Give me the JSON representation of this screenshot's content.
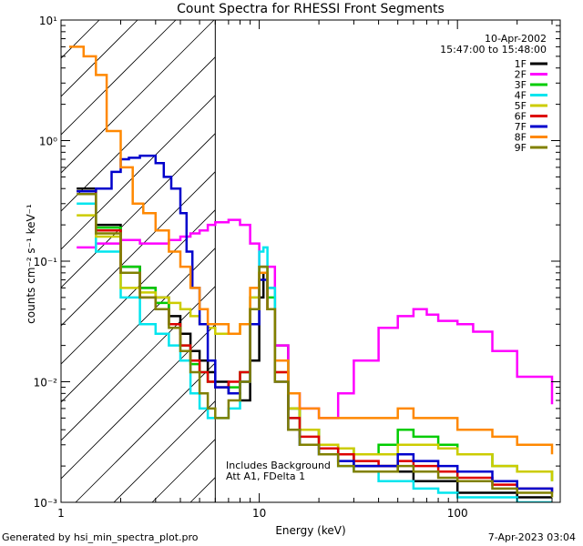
{
  "chart_data": {
    "type": "line",
    "title": "Count Spectra for RHESSI Front Segments",
    "xlabel": "Energy (keV)",
    "ylabel": "counts cm⁻² s⁻¹ keV⁻¹",
    "xscale": "log",
    "yscale": "log",
    "xlim": [
      1,
      330
    ],
    "ylim": [
      0.001,
      10
    ],
    "x_ticks": [
      {
        "value": 1,
        "label": "1"
      },
      {
        "value": 10,
        "label": "10"
      },
      {
        "value": 100,
        "label": "100"
      }
    ],
    "y_ticks": [
      {
        "value": 10,
        "label": "10¹"
      },
      {
        "value": 1,
        "label": "10⁰"
      },
      {
        "value": 0.1,
        "label": "10⁻¹"
      },
      {
        "value": 0.01,
        "label": "10⁻²"
      },
      {
        "value": 0.001,
        "label": "10⁻³"
      }
    ],
    "date": "10-Apr-2002",
    "time_range": "15:47:00 to 15:48:00",
    "annotation_lines": [
      "Includes Background",
      "Att A1, FDelta 1"
    ],
    "shaded_region_keV": [
      1,
      6
    ],
    "legend_position": "top-right",
    "series": [
      {
        "name": "1F",
        "color": "#000000",
        "x": [
          1.2,
          1.5,
          2,
          2.5,
          3,
          3.5,
          4,
          4.5,
          5,
          5.5,
          6,
          7,
          8,
          9,
          10,
          10.5,
          11,
          12,
          14,
          16,
          20,
          25,
          30,
          40,
          50,
          60,
          80,
          100,
          150,
          200,
          300
        ],
        "values": [
          0.4,
          0.2,
          0.09,
          0.06,
          0.05,
          0.035,
          0.025,
          0.018,
          0.015,
          0.012,
          0.01,
          0.008,
          0.007,
          0.015,
          0.05,
          0.08,
          0.06,
          0.02,
          0.006,
          0.004,
          0.003,
          0.0025,
          0.002,
          0.002,
          0.0018,
          0.0015,
          0.0015,
          0.0012,
          0.0012,
          0.0011,
          0.0011
        ]
      },
      {
        "name": "2F",
        "color": "#ff00ff",
        "x": [
          1.2,
          1.5,
          2,
          2.5,
          3,
          3.5,
          4,
          4.5,
          5,
          5.5,
          6,
          7,
          8,
          9,
          10,
          12,
          14,
          16,
          20,
          25,
          30,
          40,
          50,
          60,
          70,
          80,
          100,
          120,
          150,
          200,
          300
        ],
        "values": [
          0.13,
          0.14,
          0.15,
          0.14,
          0.14,
          0.15,
          0.16,
          0.17,
          0.18,
          0.2,
          0.21,
          0.22,
          0.2,
          0.14,
          0.09,
          0.02,
          0.008,
          0.006,
          0.005,
          0.008,
          0.015,
          0.028,
          0.035,
          0.04,
          0.036,
          0.032,
          0.03,
          0.026,
          0.018,
          0.011,
          0.0065
        ]
      },
      {
        "name": "3F",
        "color": "#00cc00",
        "x": [
          1.2,
          1.5,
          2,
          2.5,
          3,
          3.5,
          4,
          4.5,
          5,
          5.5,
          6,
          7,
          8,
          9,
          10,
          11,
          12,
          14,
          16,
          20,
          25,
          30,
          40,
          50,
          60,
          80,
          100,
          150,
          200,
          300
        ],
        "values": [
          0.38,
          0.19,
          0.09,
          0.06,
          0.045,
          0.03,
          0.02,
          0.014,
          0.012,
          0.01,
          0.009,
          0.009,
          0.012,
          0.04,
          0.09,
          0.05,
          0.015,
          0.006,
          0.004,
          0.003,
          0.0028,
          0.0025,
          0.003,
          0.004,
          0.0035,
          0.003,
          0.0025,
          0.002,
          0.0018,
          0.0015
        ]
      },
      {
        "name": "4F",
        "color": "#00e5ee",
        "x": [
          1.2,
          1.5,
          2,
          2.5,
          3,
          3.5,
          4,
          4.5,
          5,
          5.5,
          6,
          7,
          8,
          9,
          10,
          10.5,
          11,
          12,
          14,
          16,
          20,
          25,
          30,
          40,
          50,
          60,
          80,
          100,
          150,
          200,
          300
        ],
        "values": [
          0.3,
          0.12,
          0.05,
          0.03,
          0.025,
          0.02,
          0.015,
          0.008,
          0.006,
          0.005,
          0.005,
          0.006,
          0.01,
          0.05,
          0.12,
          0.13,
          0.06,
          0.015,
          0.005,
          0.003,
          0.0025,
          0.002,
          0.0018,
          0.0015,
          0.0015,
          0.0013,
          0.0012,
          0.0011,
          0.0011,
          0.001,
          0.001
        ]
      },
      {
        "name": "5F",
        "color": "#cccc00",
        "x": [
          1.2,
          1.5,
          2,
          2.5,
          3,
          3.5,
          4,
          4.5,
          5,
          5.5,
          6,
          7,
          8,
          9,
          10,
          11,
          12,
          14,
          16,
          20,
          25,
          30,
          40,
          50,
          60,
          80,
          100,
          150,
          200,
          300
        ],
        "values": [
          0.24,
          0.16,
          0.06,
          0.055,
          0.05,
          0.045,
          0.04,
          0.035,
          0.03,
          0.028,
          0.025,
          0.025,
          0.03,
          0.05,
          0.08,
          0.04,
          0.012,
          0.006,
          0.004,
          0.003,
          0.0028,
          0.0025,
          0.0025,
          0.003,
          0.003,
          0.0028,
          0.0025,
          0.002,
          0.0018,
          0.0015
        ]
      },
      {
        "name": "6F",
        "color": "#dd0000",
        "x": [
          1.2,
          1.5,
          2,
          2.5,
          3,
          3.5,
          4,
          4.5,
          5,
          5.5,
          6,
          7,
          8,
          9,
          10,
          11,
          12,
          14,
          16,
          20,
          25,
          30,
          40,
          50,
          60,
          80,
          100,
          150,
          200,
          300
        ],
        "values": [
          0.38,
          0.18,
          0.08,
          0.05,
          0.04,
          0.03,
          0.02,
          0.015,
          0.012,
          0.01,
          0.009,
          0.01,
          0.012,
          0.04,
          0.08,
          0.04,
          0.012,
          0.005,
          0.0035,
          0.0028,
          0.0025,
          0.0022,
          0.002,
          0.0022,
          0.002,
          0.0018,
          0.0016,
          0.0014,
          0.0013,
          0.0012
        ]
      },
      {
        "name": "7F",
        "color": "#0000cc",
        "x": [
          1.2,
          1.5,
          1.8,
          2,
          2.2,
          2.5,
          3,
          3.3,
          3.6,
          4,
          4.3,
          4.6,
          5,
          5.5,
          6,
          7,
          8,
          9,
          10,
          11,
          12,
          14,
          16,
          20,
          25,
          30,
          40,
          50,
          60,
          80,
          100,
          150,
          200,
          300
        ],
        "values": [
          0.38,
          0.4,
          0.55,
          0.7,
          0.72,
          0.75,
          0.65,
          0.5,
          0.4,
          0.25,
          0.12,
          0.06,
          0.03,
          0.015,
          0.009,
          0.008,
          0.01,
          0.03,
          0.07,
          0.04,
          0.01,
          0.004,
          0.003,
          0.0025,
          0.0022,
          0.002,
          0.002,
          0.0025,
          0.0022,
          0.002,
          0.0018,
          0.0015,
          0.0013,
          0.0012
        ]
      },
      {
        "name": "8F",
        "color": "#ff8800",
        "x": [
          1.1,
          1.2,
          1.3,
          1.5,
          1.7,
          2,
          2.3,
          2.6,
          3,
          3.5,
          4,
          4.5,
          5,
          5.5,
          6,
          7,
          8,
          9,
          10,
          11,
          12,
          14,
          16,
          20,
          25,
          30,
          40,
          50,
          60,
          80,
          100,
          150,
          200,
          300
        ],
        "values": [
          6,
          6,
          5,
          3.5,
          1.2,
          0.6,
          0.3,
          0.25,
          0.18,
          0.12,
          0.09,
          0.06,
          0.04,
          0.03,
          0.03,
          0.025,
          0.03,
          0.06,
          0.08,
          0.04,
          0.015,
          0.008,
          0.006,
          0.005,
          0.005,
          0.005,
          0.005,
          0.006,
          0.005,
          0.005,
          0.004,
          0.0035,
          0.003,
          0.0025
        ]
      },
      {
        "name": "9F",
        "color": "#808000",
        "x": [
          1.2,
          1.5,
          2,
          2.5,
          3,
          3.5,
          4,
          4.5,
          5,
          5.5,
          6,
          7,
          8,
          9,
          10,
          11,
          12,
          14,
          16,
          20,
          25,
          30,
          40,
          50,
          60,
          80,
          100,
          150,
          200,
          300
        ],
        "values": [
          0.36,
          0.17,
          0.08,
          0.05,
          0.04,
          0.028,
          0.018,
          0.012,
          0.008,
          0.006,
          0.005,
          0.007,
          0.01,
          0.04,
          0.09,
          0.04,
          0.01,
          0.004,
          0.003,
          0.0025,
          0.002,
          0.0018,
          0.0018,
          0.002,
          0.0018,
          0.0016,
          0.0015,
          0.0013,
          0.0012,
          0.0011
        ]
      }
    ]
  },
  "footer": {
    "generated_by": "Generated by hsi_min_spectra_plot.pro",
    "timestamp": "7-Apr-2023 03:04"
  }
}
